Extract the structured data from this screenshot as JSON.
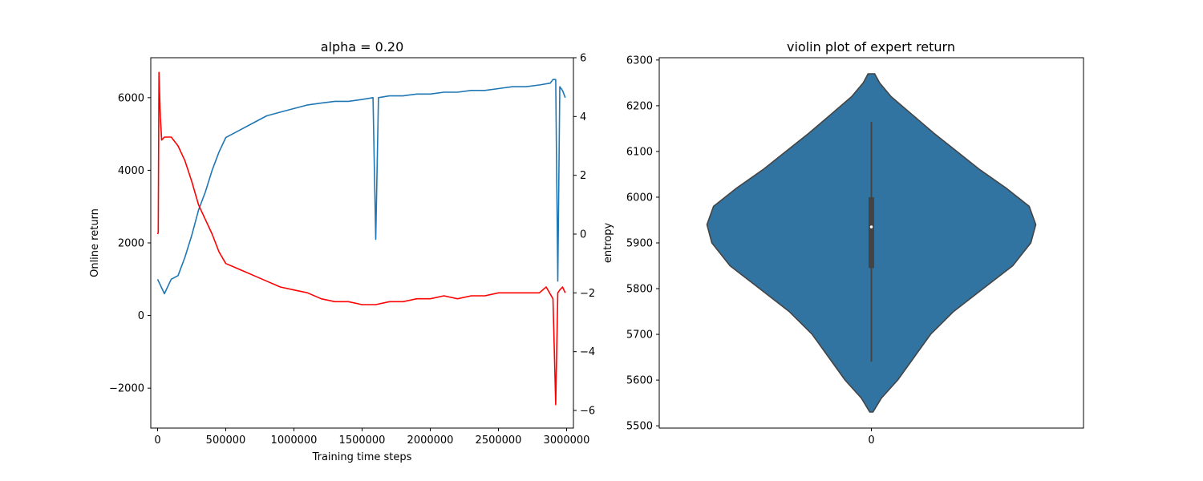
{
  "chart_data": [
    {
      "type": "line",
      "title": "alpha = 0.20",
      "xlabel": "Training time steps",
      "ylabel": "Online return",
      "y2label": "entropy",
      "xlim": [
        -50000,
        3050000
      ],
      "ylim": [
        -3100,
        7100
      ],
      "y2lim": [
        -6.6,
        6.0
      ],
      "xticks": [
        0,
        500000,
        1000000,
        1500000,
        2000000,
        2500000,
        3000000
      ],
      "xtick_labels": [
        "0",
        "500000",
        "1000000",
        "1500000",
        "2000000",
        "2500000",
        "3000000"
      ],
      "yticks": [
        -2000,
        0,
        2000,
        4000,
        6000
      ],
      "ytick_labels": [
        "−2000",
        "0",
        "2000",
        "4000",
        "6000"
      ],
      "y2ticks": [
        -6,
        -4,
        -2,
        0,
        2,
        4,
        6
      ],
      "y2tick_labels": [
        "−6",
        "−4",
        "−2",
        "0",
        "2",
        "4",
        "6"
      ],
      "grid": false,
      "series": [
        {
          "axis": "left",
          "color": "#1f77b4",
          "x": [
            0,
            50000,
            100000,
            150000,
            200000,
            250000,
            300000,
            350000,
            400000,
            450000,
            500000,
            600000,
            700000,
            800000,
            900000,
            1000000,
            1100000,
            1200000,
            1300000,
            1400000,
            1500000,
            1580000,
            1600000,
            1620000,
            1700000,
            1800000,
            1900000,
            2000000,
            2100000,
            2200000,
            2300000,
            2400000,
            2500000,
            2600000,
            2700000,
            2800000,
            2880000,
            2900000,
            2920000,
            2935000,
            2950000,
            2970000,
            2990000
          ],
          "y": [
            1000,
            600,
            1000,
            1100,
            1600,
            2200,
            2900,
            3400,
            4000,
            4500,
            4900,
            5100,
            5300,
            5500,
            5600,
            5700,
            5800,
            5850,
            5900,
            5900,
            5950,
            6000,
            2100,
            6000,
            6050,
            6050,
            6100,
            6100,
            6150,
            6150,
            6200,
            6200,
            6250,
            6300,
            6300,
            6350,
            6400,
            6500,
            6500,
            950,
            6300,
            6200,
            6000
          ]
        },
        {
          "axis": "right",
          "color": "#ff0000",
          "x": [
            0,
            5000,
            10000,
            20000,
            30000,
            50000,
            100000,
            150000,
            200000,
            250000,
            300000,
            350000,
            400000,
            450000,
            500000,
            600000,
            700000,
            800000,
            900000,
            1000000,
            1100000,
            1200000,
            1300000,
            1400000,
            1500000,
            1600000,
            1700000,
            1800000,
            1900000,
            2000000,
            2100000,
            2200000,
            2300000,
            2400000,
            2500000,
            2600000,
            2700000,
            2800000,
            2850000,
            2900000,
            2920000,
            2935000,
            2950000,
            2970000,
            2990000
          ],
          "y": [
            0.0,
            0.05,
            5.5,
            4.0,
            3.2,
            3.3,
            3.3,
            3.0,
            2.5,
            1.8,
            1.0,
            0.5,
            0.0,
            -0.6,
            -1.0,
            -1.2,
            -1.4,
            -1.6,
            -1.8,
            -1.9,
            -2.0,
            -2.2,
            -2.3,
            -2.3,
            -2.4,
            -2.4,
            -2.3,
            -2.3,
            -2.2,
            -2.2,
            -2.1,
            -2.2,
            -2.1,
            -2.1,
            -2.0,
            -2.0,
            -2.0,
            -2.0,
            -1.8,
            -2.2,
            -5.8,
            -2.0,
            -1.9,
            -1.8,
            -2.0
          ]
        }
      ]
    },
    {
      "type": "violin",
      "title": "violin plot of expert return",
      "xtick_labels": [
        "0"
      ],
      "ylim": [
        5495,
        6305
      ],
      "yticks": [
        5500,
        5600,
        5700,
        5800,
        5900,
        6000,
        6100,
        6200,
        6300
      ],
      "ytick_labels": [
        "5500",
        "5600",
        "5700",
        "5800",
        "5900",
        "6000",
        "6100",
        "6200",
        "6300"
      ],
      "color": "#3274a1",
      "edge_color": "#444444",
      "range": [
        5530,
        6270
      ],
      "density": {
        "y": [
          5530,
          5560,
          5600,
          5650,
          5700,
          5750,
          5800,
          5850,
          5900,
          5940,
          5980,
          6020,
          6060,
          6100,
          6140,
          6180,
          6220,
          6250,
          6270
        ],
        "half_width": [
          0.01,
          0.06,
          0.16,
          0.26,
          0.36,
          0.5,
          0.68,
          0.86,
          0.97,
          1.0,
          0.96,
          0.82,
          0.66,
          0.52,
          0.38,
          0.25,
          0.12,
          0.05,
          0.02
        ]
      },
      "whisker": [
        5640,
        6165
      ],
      "box": [
        5845,
        6000
      ],
      "median": 5935
    }
  ]
}
